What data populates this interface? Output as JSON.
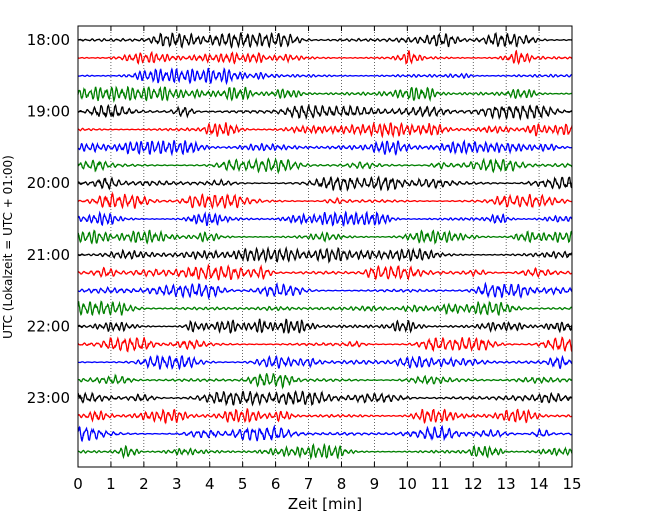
{
  "chart_data": {
    "type": "line",
    "title": "",
    "xlabel": "Zeit  [min]",
    "ylabel": "UTC (Lokalzeit = UTC + 01:00)",
    "xlim": [
      0,
      15
    ],
    "x_ticks": [
      "0",
      "1",
      "2",
      "3",
      "4",
      "5",
      "6",
      "7",
      "8",
      "9",
      "10",
      "11",
      "12",
      "13",
      "14",
      "15"
    ],
    "y_ticks": [
      "18:00",
      "19:00",
      "20:00",
      "21:00",
      "22:00",
      "23:00"
    ],
    "grid": "vertical dotted",
    "rows_per_hour": 4,
    "row_minutes": 15,
    "line_colors": [
      "#000000",
      "#ff0000",
      "#0000ff",
      "#008000"
    ],
    "rows": [
      {
        "start": "18:00",
        "color": "#000000"
      },
      {
        "start": "18:15",
        "color": "#ff0000"
      },
      {
        "start": "18:30",
        "color": "#0000ff"
      },
      {
        "start": "18:45",
        "color": "#008000"
      },
      {
        "start": "19:00",
        "color": "#000000"
      },
      {
        "start": "19:15",
        "color": "#ff0000"
      },
      {
        "start": "19:30",
        "color": "#0000ff"
      },
      {
        "start": "19:45",
        "color": "#008000"
      },
      {
        "start": "20:00",
        "color": "#000000"
      },
      {
        "start": "20:15",
        "color": "#ff0000"
      },
      {
        "start": "20:30",
        "color": "#0000ff"
      },
      {
        "start": "20:45",
        "color": "#008000"
      },
      {
        "start": "21:00",
        "color": "#000000"
      },
      {
        "start": "21:15",
        "color": "#ff0000"
      },
      {
        "start": "21:30",
        "color": "#0000ff"
      },
      {
        "start": "21:45",
        "color": "#008000"
      },
      {
        "start": "22:00",
        "color": "#000000"
      },
      {
        "start": "22:15",
        "color": "#ff0000"
      },
      {
        "start": "22:30",
        "color": "#0000ff"
      },
      {
        "start": "22:45",
        "color": "#008000"
      },
      {
        "start": "23:00",
        "color": "#000000"
      },
      {
        "start": "23:15",
        "color": "#ff0000"
      },
      {
        "start": "23:30",
        "color": "#0000ff"
      },
      {
        "start": "23:45",
        "color": "#008000"
      }
    ]
  }
}
